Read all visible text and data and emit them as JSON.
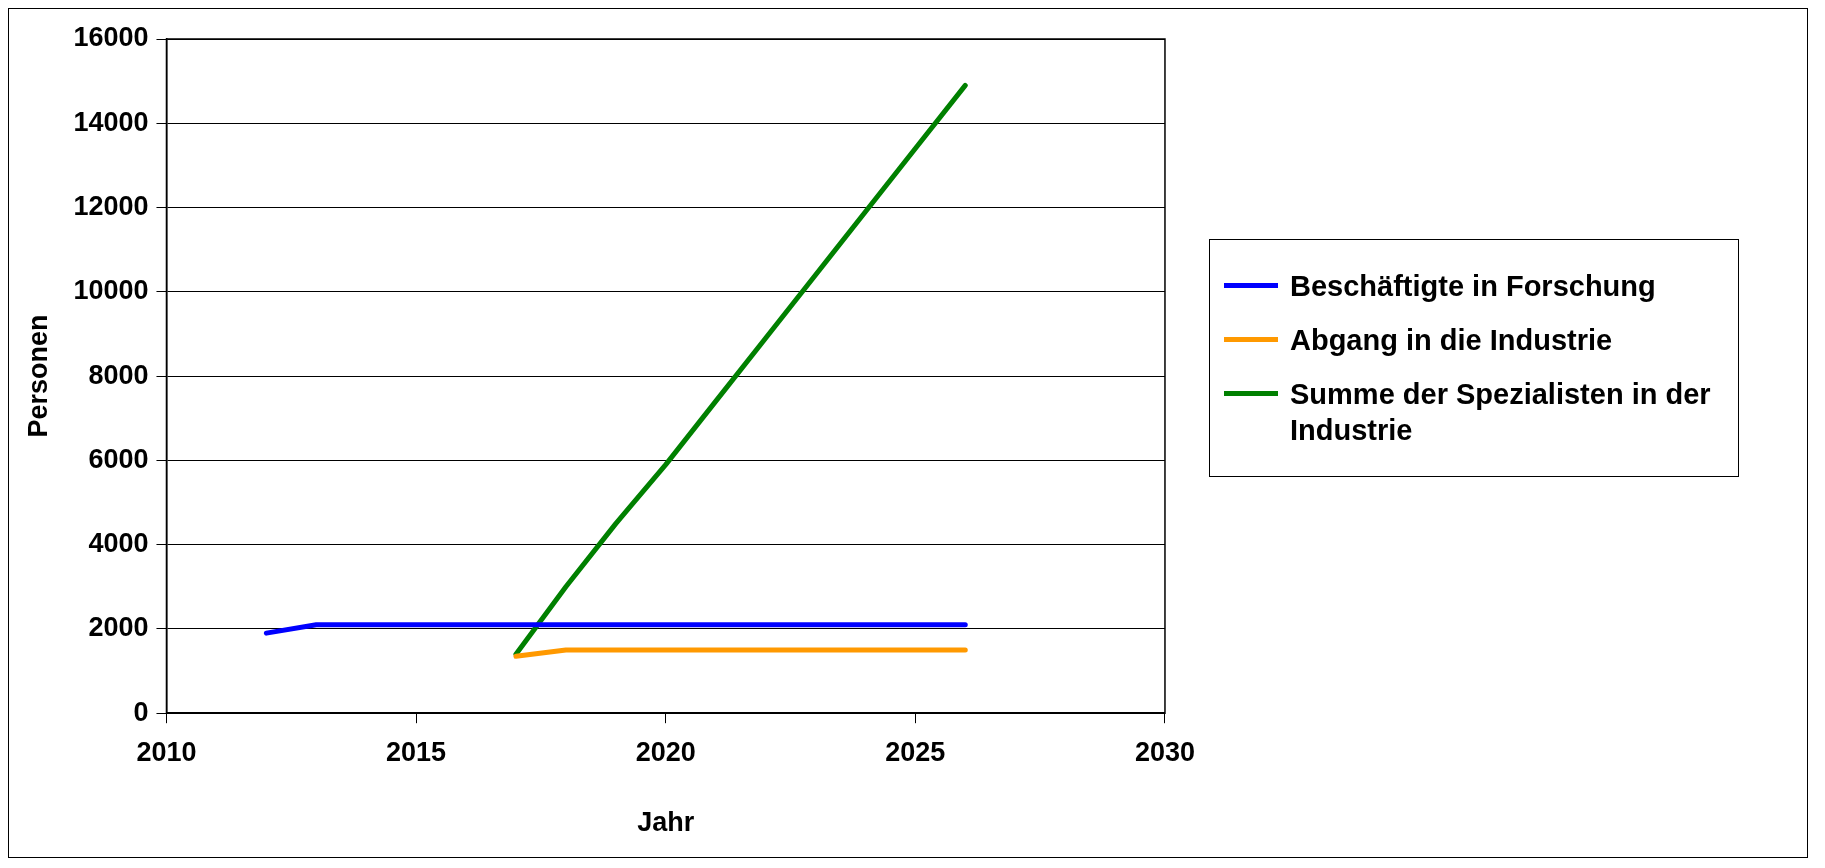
{
  "chart_data": {
    "type": "line",
    "xlabel": "Jahr",
    "ylabel": "Personen",
    "xlim": [
      2010,
      2030
    ],
    "xticks": [
      2010,
      2015,
      2020,
      2025,
      2030
    ],
    "ylim": [
      0,
      16000
    ],
    "yticks": [
      0,
      2000,
      4000,
      6000,
      8000,
      10000,
      12000,
      14000,
      16000
    ],
    "grid": "y",
    "legend": "right",
    "marker": "none",
    "line_style": "solid",
    "series": [
      {
        "name": "Beschäftigte in Forschung",
        "color": "#0000ff",
        "x": [
          2012,
          2013,
          2014,
          2015,
          2016,
          2017,
          2018,
          2019,
          2020,
          2021,
          2022,
          2023,
          2024,
          2025,
          2026
        ],
        "values": [
          1900,
          2100,
          2100,
          2100,
          2100,
          2100,
          2100,
          2100,
          2100,
          2100,
          2100,
          2100,
          2100,
          2100,
          2100
        ]
      },
      {
        "name": "Abgang in die Industrie",
        "color": "#ff9900",
        "x": [
          2017,
          2018,
          2019,
          2020,
          2021,
          2022,
          2023,
          2024,
          2025,
          2026
        ],
        "values": [
          1350,
          1500,
          1500,
          1500,
          1500,
          1500,
          1500,
          1500,
          1500,
          1500
        ]
      },
      {
        "name": "Summe der Spezialisten in der Industrie",
        "color": "#008000",
        "x": [
          2017,
          2018,
          2019,
          2020,
          2021,
          2022,
          2023,
          2024,
          2025,
          2026
        ],
        "values": [
          1400,
          3000,
          4500,
          5900,
          7400,
          8900,
          10400,
          11900,
          13400,
          14900
        ]
      }
    ]
  }
}
